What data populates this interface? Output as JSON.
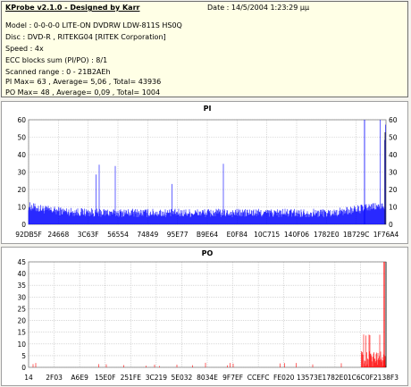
{
  "header": {
    "app_title": "KProbe v2.1.0 - Designed by Karr",
    "date": "Date : 14/5/2004 1:23:29 µµ"
  },
  "info_lines": [
    "Model : 0-0-0-0 LITE-ON DVDRW LDW-811S   HS0Q",
    "Disc : DVD-R , RITEKG04 [RITEK Corporation]",
    "Speed : 4x",
    "ECC blocks sum (PI/PO) : 8/1",
    "Scanned range : 0 - 21B2AEh",
    "PI Max= 63 , Average= 5,06 , Total= 43936",
    "PO Max= 48 , Average= 0,09 , Total= 1004"
  ],
  "colors": {
    "pi_bar": "#0000ff",
    "po_bar": "#ff0000",
    "max_line": "#000000",
    "grid": "#c0c0c0"
  },
  "chart_data": [
    {
      "type": "bar",
      "title": "PI",
      "ylim": [
        0,
        60
      ],
      "y_ticks": [
        0,
        10,
        20,
        30,
        40,
        50,
        60
      ],
      "x_ticks": [
        "92DB5F",
        "24668",
        "3C63F",
        "56554",
        "74849",
        "95E77",
        "B9E64",
        "E0F84",
        "10C715",
        "140F06",
        "1782E0",
        "1B729C",
        "1F76A4"
      ],
      "grid": true,
      "max": 63,
      "average": 5.06,
      "total": 43936
    },
    {
      "type": "bar",
      "title": "PO",
      "ylim": [
        0,
        45
      ],
      "y_ticks": [
        0,
        5,
        10,
        15,
        20,
        25,
        30,
        35,
        40,
        45
      ],
      "x_ticks": [
        "14",
        "2F03",
        "A6E9",
        "15E0F",
        "251FE",
        "3C219",
        "5E032",
        "8034E",
        "9F7EF",
        "CCEFC",
        "FE020",
        "13573E",
        "1782E0",
        "1C6C0F",
        "2138F3"
      ],
      "grid": true,
      "max": 48,
      "average": 0.09,
      "total": 1004
    }
  ]
}
